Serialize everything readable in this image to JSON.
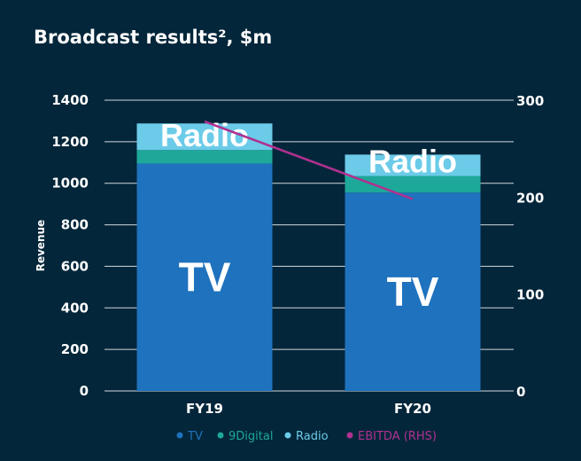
{
  "chart_data": {
    "type": "bar",
    "title": "Broadcast results², $m",
    "ylabel": "Revenue",
    "categories": [
      "FY19",
      "FY20"
    ],
    "stacked": true,
    "ylim": [
      0,
      1400
    ],
    "yticks": [
      0,
      200,
      400,
      600,
      800,
      1000,
      1200,
      1400
    ],
    "y2lim": [
      0,
      300
    ],
    "y2ticks": [
      0,
      100,
      200,
      300
    ],
    "grid": true,
    "legend_placement": "bottom",
    "series": [
      {
        "name": "TV",
        "color": "#1f72bd",
        "values": [
          1095,
          955
        ],
        "segment_labels": [
          "TV",
          "TV"
        ]
      },
      {
        "name": "9Digital",
        "color": "#1ea89a",
        "values": [
          65,
          80
        ],
        "segment_labels": [
          "",
          ""
        ]
      },
      {
        "name": "Radio",
        "color": "#6bcbe8",
        "values": [
          128,
          103
        ],
        "segment_labels": [
          "Radio",
          "Radio"
        ]
      }
    ],
    "line_series": [
      {
        "name": "EBITDA (RHS)",
        "color": "#b0318f",
        "axis": "right",
        "values": [
          278,
          198
        ]
      }
    ]
  }
}
